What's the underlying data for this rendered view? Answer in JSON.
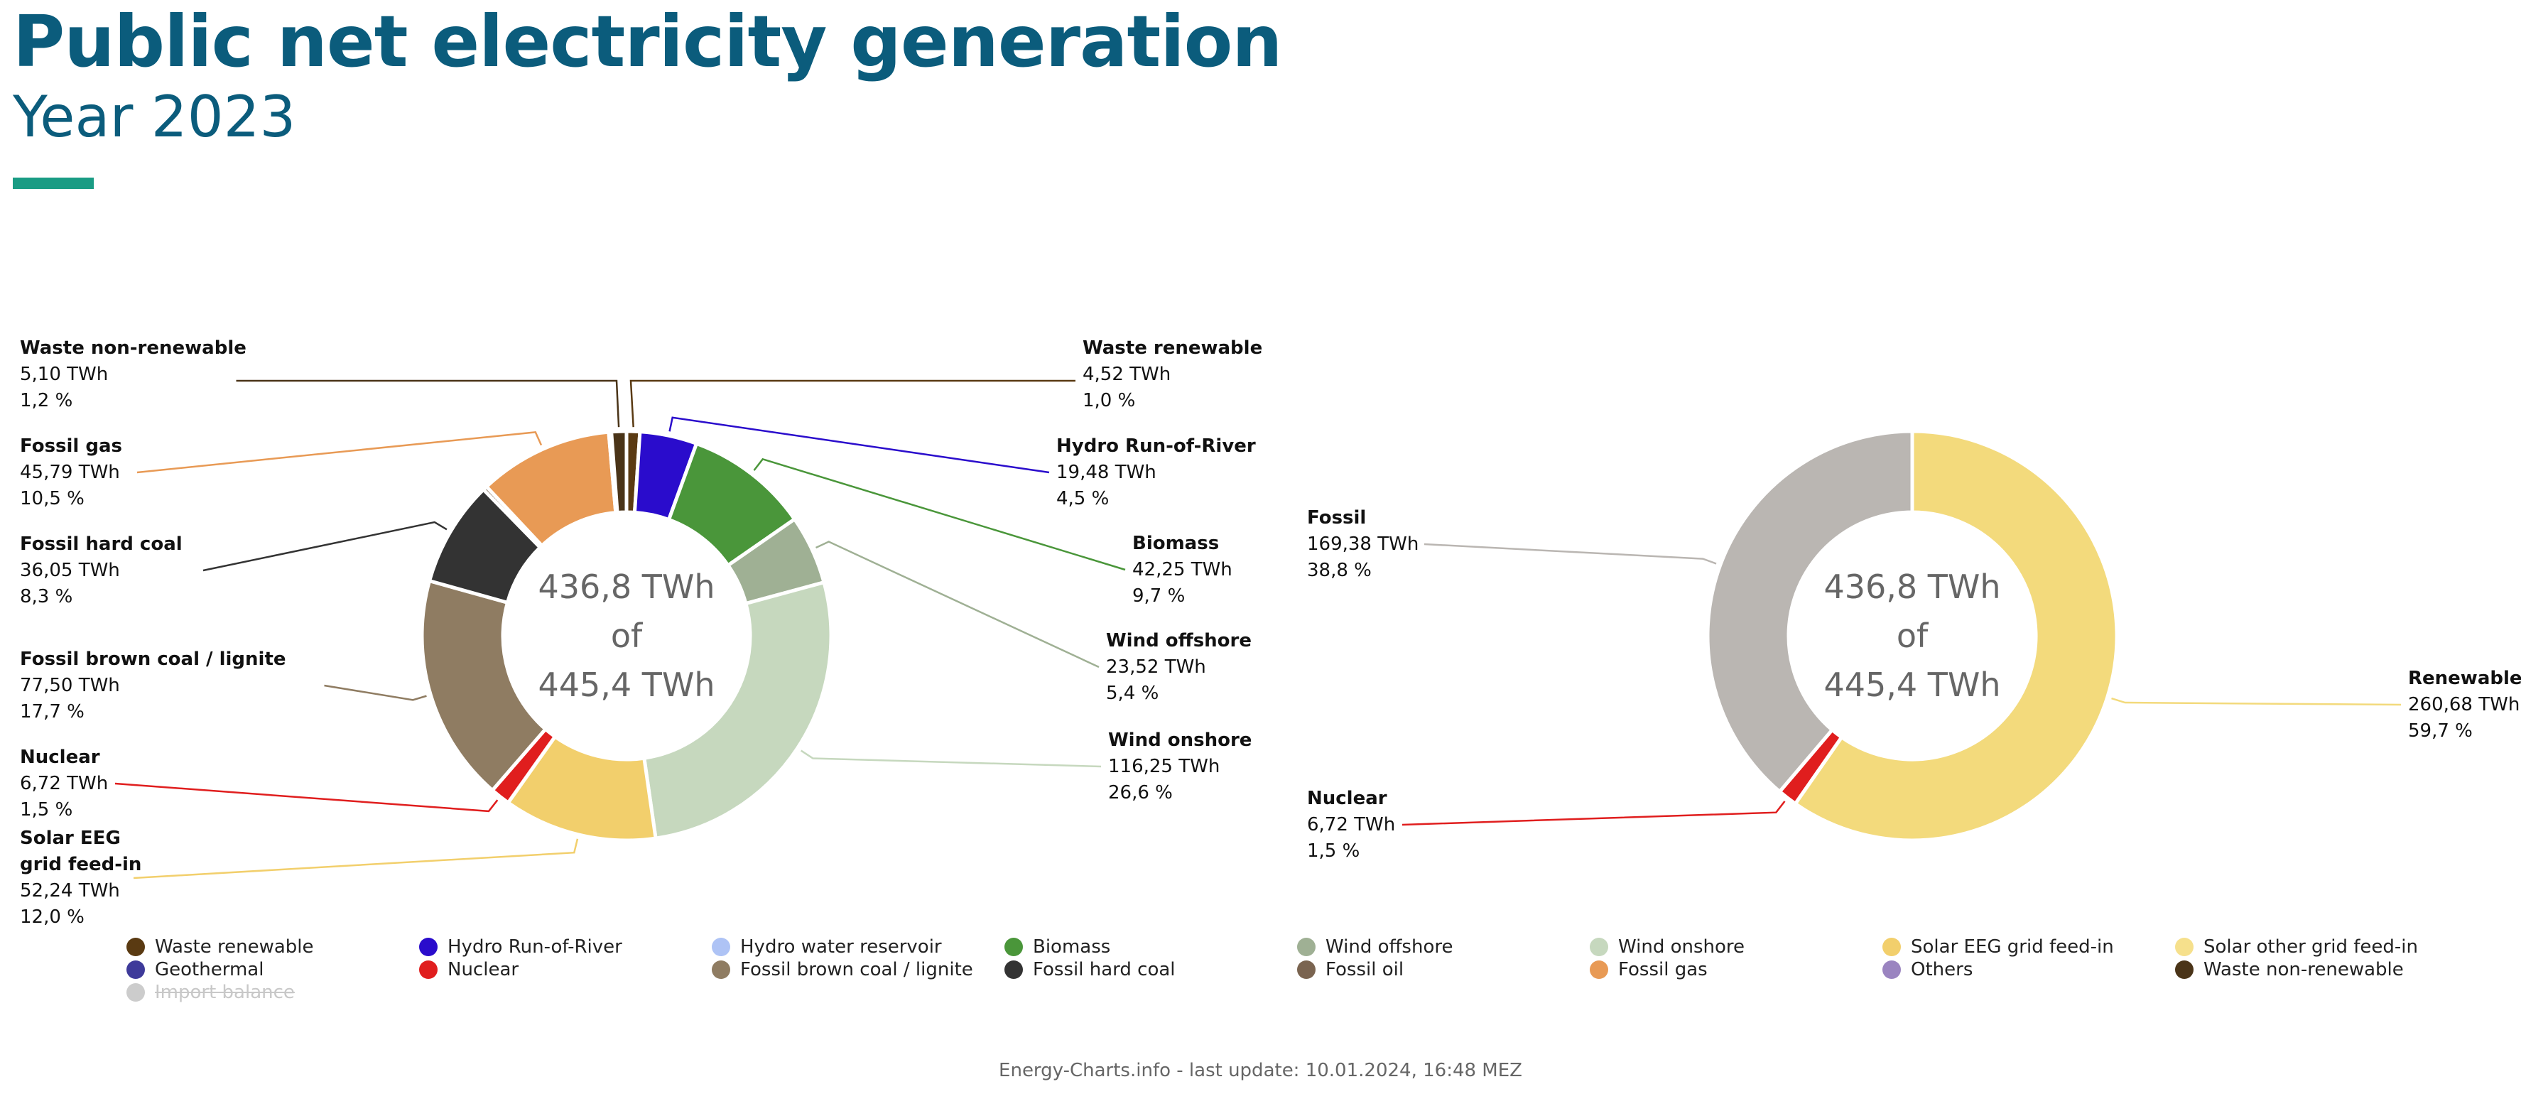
{
  "header": {
    "title": "Public net electricity generation",
    "subtitle": "Year 2023",
    "accent_color": "#1a9c84"
  },
  "chart_data": [
    {
      "type": "pie",
      "variant": "donut",
      "center_text": [
        "436,8 TWh",
        "of",
        "445,4 TWh"
      ],
      "slices": [
        {
          "name": "Waste renewable",
          "value": 4.52,
          "value_label": "4,52 TWh",
          "percent_label": "1,0 %",
          "color": "#5a3a12"
        },
        {
          "name": "Hydro Run-of-River",
          "value": 19.48,
          "value_label": "19,48 TWh",
          "percent_label": "4,5 %",
          "color": "#2a0ccc"
        },
        {
          "name": "Biomass",
          "value": 42.25,
          "value_label": "42,25 TWh",
          "percent_label": "9,7 %",
          "color": "#4a963a"
        },
        {
          "name": "Wind offshore",
          "value": 23.52,
          "value_label": "23,52 TWh",
          "percent_label": "5,4 %",
          "color": "#9fb094"
        },
        {
          "name": "Wind onshore",
          "value": 116.25,
          "value_label": "116,25 TWh",
          "percent_label": "26,6 %",
          "color": "#c6d8be"
        },
        {
          "name": "Solar EEG grid feed-in",
          "label_lines": [
            "Solar EEG",
            "grid feed-in"
          ],
          "value": 52.24,
          "value_label": "52,24 TWh",
          "percent_label": "12,0 %",
          "color": "#f2cf6c"
        },
        {
          "name": "Nuclear",
          "value": 6.72,
          "value_label": "6,72 TWh",
          "percent_label": "1,5 %",
          "color": "#e01e1e"
        },
        {
          "name": "Fossil brown coal / lignite",
          "value": 77.5,
          "value_label": "77,50 TWh",
          "percent_label": "17,7 %",
          "color": "#8f7c62"
        },
        {
          "name": "Fossil hard coal",
          "value": 36.05,
          "value_label": "36,05 TWh",
          "percent_label": "8,3 %",
          "color": "#333333"
        },
        {
          "name": "Fossil oil",
          "value": 1.4,
          "value_label": "",
          "percent_label": "",
          "color": "#7a6450"
        },
        {
          "name": "Fossil gas",
          "value": 45.79,
          "value_label": "45,79 TWh",
          "percent_label": "10,5 %",
          "color": "#e89a55"
        },
        {
          "name": "Others",
          "value": 0.9,
          "value_label": "",
          "percent_label": "",
          "color": "#9a84c0"
        },
        {
          "name": "Waste non-renewable",
          "value": 5.1,
          "value_label": "5,10 TWh",
          "percent_label": "1,2 %",
          "color": "#4a3418"
        }
      ]
    },
    {
      "type": "pie",
      "variant": "donut",
      "center_text": [
        "436,8 TWh",
        "of",
        "445,4 TWh"
      ],
      "slices": [
        {
          "name": "Renewable",
          "value": 260.68,
          "value_label": "260,68 TWh",
          "percent_label": "59,7 %",
          "color": "#f3da7c"
        },
        {
          "name": "Nuclear",
          "value": 6.72,
          "value_label": "6,72 TWh",
          "percent_label": "1,5 %",
          "color": "#e01e1e"
        },
        {
          "name": "Fossil",
          "value": 169.38,
          "value_label": "169,38 TWh",
          "percent_label": "38,8 %",
          "color": "#bab6b2"
        }
      ]
    }
  ],
  "legend": [
    {
      "label": "Waste renewable",
      "color": "#5a3a12"
    },
    {
      "label": "Hydro Run-of-River",
      "color": "#2a0ccc"
    },
    {
      "label": "Hydro water reservoir",
      "color": "#aec3f5"
    },
    {
      "label": "Biomass",
      "color": "#4a963a"
    },
    {
      "label": "Wind offshore",
      "color": "#9fb094"
    },
    {
      "label": "Wind onshore",
      "color": "#c6d8be"
    },
    {
      "label": "Solar EEG grid feed-in",
      "color": "#f2cf6c"
    },
    {
      "label": "Solar other grid feed-in",
      "color": "#f6e08c"
    },
    {
      "label": "Geothermal",
      "color": "#3e3a9a"
    },
    {
      "label": "Nuclear",
      "color": "#e01e1e"
    },
    {
      "label": "Fossil brown coal / lignite",
      "color": "#8f7c62"
    },
    {
      "label": "Fossil hard coal",
      "color": "#333333"
    },
    {
      "label": "Fossil oil",
      "color": "#7a6450"
    },
    {
      "label": "Fossil gas",
      "color": "#e89a55"
    },
    {
      "label": "Others",
      "color": "#9a84c0"
    },
    {
      "label": "Waste non-renewable",
      "color": "#4a3418"
    },
    {
      "label": "Import balance",
      "color": "#cccccc",
      "hidden": true
    }
  ],
  "footer": {
    "text": "Energy-Charts.info - last update: 10.01.2024, 16:48 MEZ"
  }
}
